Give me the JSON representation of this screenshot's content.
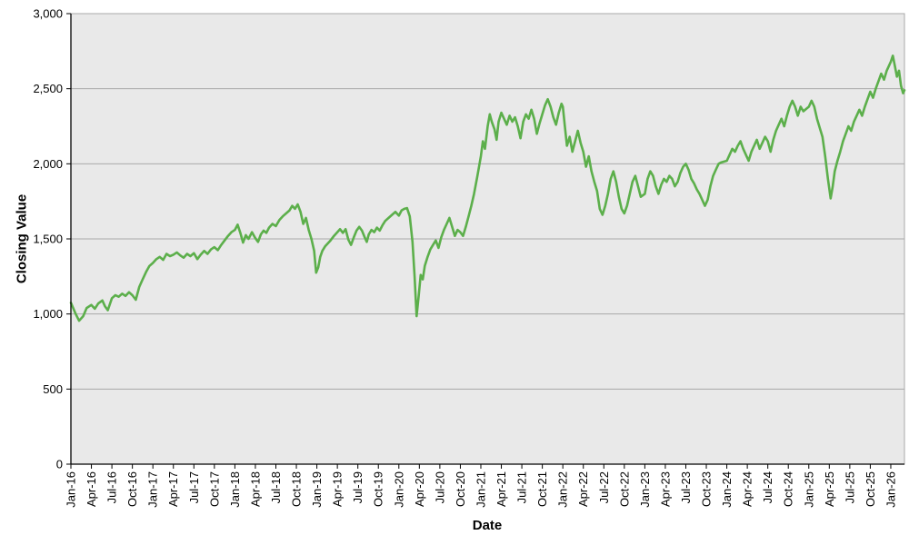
{
  "chart_data": {
    "type": "line",
    "xlabel": "Date",
    "ylabel": "Closing Value",
    "xlim_months": [
      0,
      122
    ],
    "ylim": [
      0,
      3000
    ],
    "grid": "horizontal",
    "legend": "none",
    "x_tick_step_months": 3,
    "y_ticks": [
      {
        "value": 0,
        "label": "0"
      },
      {
        "value": 500,
        "label": "500"
      },
      {
        "value": 1000,
        "label": "1,000"
      },
      {
        "value": 1500,
        "label": "1,500"
      },
      {
        "value": 2000,
        "label": "2,000"
      },
      {
        "value": 2500,
        "label": "2,500"
      },
      {
        "value": 3000,
        "label": "3,000"
      }
    ],
    "x_tick_labels": [
      "Jan-16",
      "Apr-16",
      "Jul-16",
      "Oct-16",
      "Jan-17",
      "Apr-17",
      "Jul-17",
      "Oct-17",
      "Jan-18",
      "Apr-18",
      "Jul-18",
      "Oct-18",
      "Jan-19",
      "Apr-19",
      "Jul-19",
      "Oct-19",
      "Jan-20",
      "Apr-20",
      "Jul-20",
      "Oct-20",
      "Jan-21",
      "Apr-21",
      "Jul-21",
      "Oct-21",
      "Jan-22",
      "Apr-22",
      "Jul-22",
      "Oct-22",
      "Jan-23",
      "Apr-23",
      "Jul-23",
      "Oct-23",
      "Jan-24",
      "Apr-24",
      "Jul-24",
      "Oct-24",
      "Jan-25",
      "Apr-25",
      "Jul-25",
      "Oct-25",
      "Jan-26"
    ],
    "style": {
      "line_color": "#5caf4b",
      "line_width": 2.6,
      "plot_bg": "#e9e9e9",
      "grid_color": "#a9a9a9",
      "axis_color": "#000000",
      "text_color": "#000000"
    },
    "series": [
      {
        "name": "Closing Value",
        "points": [
          [
            0,
            1075
          ],
          [
            0.7,
            1000
          ],
          [
            1.2,
            955
          ],
          [
            1.8,
            985
          ],
          [
            2.3,
            1040
          ],
          [
            3,
            1060
          ],
          [
            3.5,
            1035
          ],
          [
            4,
            1070
          ],
          [
            4.6,
            1090
          ],
          [
            5,
            1050
          ],
          [
            5.4,
            1025
          ],
          [
            6,
            1105
          ],
          [
            6.5,
            1125
          ],
          [
            7,
            1115
          ],
          [
            7.5,
            1135
          ],
          [
            8,
            1120
          ],
          [
            8.5,
            1145
          ],
          [
            9,
            1125
          ],
          [
            9.5,
            1095
          ],
          [
            10,
            1180
          ],
          [
            10.5,
            1230
          ],
          [
            11,
            1280
          ],
          [
            11.5,
            1320
          ],
          [
            12,
            1340
          ],
          [
            12.5,
            1365
          ],
          [
            13,
            1380
          ],
          [
            13.5,
            1360
          ],
          [
            14,
            1400
          ],
          [
            14.5,
            1385
          ],
          [
            15,
            1395
          ],
          [
            15.5,
            1410
          ],
          [
            16,
            1390
          ],
          [
            16.5,
            1375
          ],
          [
            17,
            1400
          ],
          [
            17.5,
            1385
          ],
          [
            18,
            1405
          ],
          [
            18.5,
            1365
          ],
          [
            19,
            1395
          ],
          [
            19.5,
            1420
          ],
          [
            20,
            1400
          ],
          [
            20.5,
            1430
          ],
          [
            21,
            1445
          ],
          [
            21.5,
            1425
          ],
          [
            22,
            1460
          ],
          [
            22.5,
            1490
          ],
          [
            23,
            1520
          ],
          [
            23.5,
            1545
          ],
          [
            24,
            1560
          ],
          [
            24.4,
            1595
          ],
          [
            24.8,
            1540
          ],
          [
            25.2,
            1475
          ],
          [
            25.6,
            1525
          ],
          [
            26,
            1500
          ],
          [
            26.5,
            1545
          ],
          [
            27,
            1505
          ],
          [
            27.4,
            1480
          ],
          [
            27.8,
            1530
          ],
          [
            28.2,
            1555
          ],
          [
            28.6,
            1540
          ],
          [
            29,
            1575
          ],
          [
            29.5,
            1600
          ],
          [
            30,
            1585
          ],
          [
            30.5,
            1625
          ],
          [
            31,
            1650
          ],
          [
            31.5,
            1670
          ],
          [
            32,
            1690
          ],
          [
            32.4,
            1720
          ],
          [
            32.8,
            1700
          ],
          [
            33.2,
            1730
          ],
          [
            33.6,
            1680
          ],
          [
            34,
            1600
          ],
          [
            34.4,
            1640
          ],
          [
            34.8,
            1560
          ],
          [
            35.2,
            1500
          ],
          [
            35.6,
            1420
          ],
          [
            35.9,
            1275
          ],
          [
            36.2,
            1310
          ],
          [
            36.5,
            1380
          ],
          [
            36.8,
            1420
          ],
          [
            37.2,
            1450
          ],
          [
            37.6,
            1470
          ],
          [
            38,
            1490
          ],
          [
            38.5,
            1520
          ],
          [
            39,
            1545
          ],
          [
            39.4,
            1565
          ],
          [
            39.8,
            1540
          ],
          [
            40.2,
            1565
          ],
          [
            40.6,
            1495
          ],
          [
            41,
            1460
          ],
          [
            41.4,
            1510
          ],
          [
            41.8,
            1555
          ],
          [
            42.2,
            1580
          ],
          [
            42.6,
            1555
          ],
          [
            43,
            1510
          ],
          [
            43.3,
            1480
          ],
          [
            43.6,
            1530
          ],
          [
            44,
            1560
          ],
          [
            44.4,
            1545
          ],
          [
            44.8,
            1575
          ],
          [
            45.2,
            1555
          ],
          [
            45.6,
            1590
          ],
          [
            46,
            1620
          ],
          [
            46.5,
            1640
          ],
          [
            47,
            1660
          ],
          [
            47.5,
            1680
          ],
          [
            48,
            1655
          ],
          [
            48.4,
            1690
          ],
          [
            48.8,
            1700
          ],
          [
            49.2,
            1705
          ],
          [
            49.6,
            1650
          ],
          [
            50,
            1480
          ],
          [
            50.3,
            1250
          ],
          [
            50.6,
            985
          ],
          [
            50.9,
            1120
          ],
          [
            51.2,
            1260
          ],
          [
            51.5,
            1230
          ],
          [
            51.8,
            1320
          ],
          [
            52.2,
            1380
          ],
          [
            52.6,
            1430
          ],
          [
            53,
            1460
          ],
          [
            53.4,
            1490
          ],
          [
            53.8,
            1440
          ],
          [
            54.2,
            1510
          ],
          [
            54.6,
            1560
          ],
          [
            55,
            1600
          ],
          [
            55.4,
            1640
          ],
          [
            55.8,
            1580
          ],
          [
            56.2,
            1520
          ],
          [
            56.6,
            1560
          ],
          [
            57,
            1545
          ],
          [
            57.4,
            1520
          ],
          [
            57.8,
            1580
          ],
          [
            58.2,
            1650
          ],
          [
            58.6,
            1720
          ],
          [
            59,
            1800
          ],
          [
            59.5,
            1920
          ],
          [
            60,
            2050
          ],
          [
            60.3,
            2150
          ],
          [
            60.6,
            2100
          ],
          [
            61,
            2250
          ],
          [
            61.3,
            2330
          ],
          [
            61.6,
            2280
          ],
          [
            62,
            2230
          ],
          [
            62.3,
            2160
          ],
          [
            62.6,
            2280
          ],
          [
            63,
            2340
          ],
          [
            63.4,
            2300
          ],
          [
            63.8,
            2260
          ],
          [
            64.2,
            2320
          ],
          [
            64.6,
            2280
          ],
          [
            65,
            2310
          ],
          [
            65.4,
            2250
          ],
          [
            65.8,
            2170
          ],
          [
            66.2,
            2280
          ],
          [
            66.6,
            2330
          ],
          [
            67,
            2300
          ],
          [
            67.4,
            2360
          ],
          [
            67.8,
            2300
          ],
          [
            68.2,
            2200
          ],
          [
            68.6,
            2270
          ],
          [
            69,
            2330
          ],
          [
            69.4,
            2390
          ],
          [
            69.8,
            2430
          ],
          [
            70.2,
            2380
          ],
          [
            70.6,
            2310
          ],
          [
            71,
            2260
          ],
          [
            71.4,
            2340
          ],
          [
            71.8,
            2400
          ],
          [
            72,
            2380
          ],
          [
            72.3,
            2250
          ],
          [
            72.6,
            2120
          ],
          [
            73,
            2180
          ],
          [
            73.4,
            2080
          ],
          [
            73.8,
            2150
          ],
          [
            74.2,
            2220
          ],
          [
            74.6,
            2140
          ],
          [
            75,
            2080
          ],
          [
            75.4,
            1980
          ],
          [
            75.8,
            2050
          ],
          [
            76.2,
            1950
          ],
          [
            76.6,
            1880
          ],
          [
            77,
            1820
          ],
          [
            77.4,
            1700
          ],
          [
            77.8,
            1660
          ],
          [
            78.2,
            1720
          ],
          [
            78.6,
            1800
          ],
          [
            79,
            1900
          ],
          [
            79.4,
            1950
          ],
          [
            79.8,
            1880
          ],
          [
            80.2,
            1780
          ],
          [
            80.6,
            1700
          ],
          [
            81,
            1670
          ],
          [
            81.4,
            1720
          ],
          [
            81.8,
            1800
          ],
          [
            82.2,
            1880
          ],
          [
            82.6,
            1920
          ],
          [
            83,
            1850
          ],
          [
            83.4,
            1780
          ],
          [
            84,
            1800
          ],
          [
            84.4,
            1900
          ],
          [
            84.8,
            1950
          ],
          [
            85.2,
            1920
          ],
          [
            85.6,
            1850
          ],
          [
            86,
            1800
          ],
          [
            86.4,
            1860
          ],
          [
            86.8,
            1900
          ],
          [
            87.2,
            1880
          ],
          [
            87.6,
            1920
          ],
          [
            88,
            1900
          ],
          [
            88.4,
            1850
          ],
          [
            88.8,
            1880
          ],
          [
            89.2,
            1940
          ],
          [
            89.6,
            1980
          ],
          [
            90,
            2000
          ],
          [
            90.4,
            1960
          ],
          [
            90.8,
            1900
          ],
          [
            91.2,
            1870
          ],
          [
            91.6,
            1830
          ],
          [
            92,
            1800
          ],
          [
            92.4,
            1760
          ],
          [
            92.8,
            1720
          ],
          [
            93.2,
            1760
          ],
          [
            93.6,
            1850
          ],
          [
            94,
            1920
          ],
          [
            94.4,
            1960
          ],
          [
            94.8,
            2000
          ],
          [
            95.2,
            2010
          ],
          [
            96,
            2020
          ],
          [
            96.4,
            2060
          ],
          [
            96.8,
            2100
          ],
          [
            97.2,
            2080
          ],
          [
            97.6,
            2120
          ],
          [
            98,
            2150
          ],
          [
            98.4,
            2100
          ],
          [
            98.8,
            2060
          ],
          [
            99.2,
            2020
          ],
          [
            99.6,
            2080
          ],
          [
            100,
            2120
          ],
          [
            100.4,
            2160
          ],
          [
            100.8,
            2100
          ],
          [
            101.2,
            2140
          ],
          [
            101.6,
            2180
          ],
          [
            102,
            2150
          ],
          [
            102.4,
            2080
          ],
          [
            102.8,
            2160
          ],
          [
            103.2,
            2220
          ],
          [
            103.6,
            2260
          ],
          [
            104,
            2300
          ],
          [
            104.4,
            2250
          ],
          [
            104.8,
            2320
          ],
          [
            105.2,
            2380
          ],
          [
            105.6,
            2420
          ],
          [
            106,
            2380
          ],
          [
            106.4,
            2320
          ],
          [
            106.8,
            2380
          ],
          [
            107.2,
            2350
          ],
          [
            108,
            2380
          ],
          [
            108.4,
            2420
          ],
          [
            108.8,
            2380
          ],
          [
            109.2,
            2300
          ],
          [
            109.6,
            2240
          ],
          [
            110,
            2180
          ],
          [
            110.4,
            2050
          ],
          [
            110.8,
            1900
          ],
          [
            111.2,
            1770
          ],
          [
            111.5,
            1850
          ],
          [
            111.8,
            1950
          ],
          [
            112.2,
            2020
          ],
          [
            112.6,
            2080
          ],
          [
            113,
            2150
          ],
          [
            113.4,
            2200
          ],
          [
            113.8,
            2250
          ],
          [
            114.2,
            2220
          ],
          [
            114.6,
            2280
          ],
          [
            115,
            2320
          ],
          [
            115.4,
            2360
          ],
          [
            115.8,
            2320
          ],
          [
            116.2,
            2380
          ],
          [
            116.6,
            2430
          ],
          [
            117,
            2480
          ],
          [
            117.4,
            2440
          ],
          [
            117.8,
            2500
          ],
          [
            118.2,
            2550
          ],
          [
            118.6,
            2600
          ],
          [
            119,
            2560
          ],
          [
            119.4,
            2620
          ],
          [
            120,
            2680
          ],
          [
            120.3,
            2720
          ],
          [
            120.6,
            2650
          ],
          [
            120.9,
            2580
          ],
          [
            121.2,
            2620
          ],
          [
            121.5,
            2520
          ],
          [
            121.8,
            2470
          ],
          [
            122,
            2490
          ]
        ]
      }
    ]
  }
}
